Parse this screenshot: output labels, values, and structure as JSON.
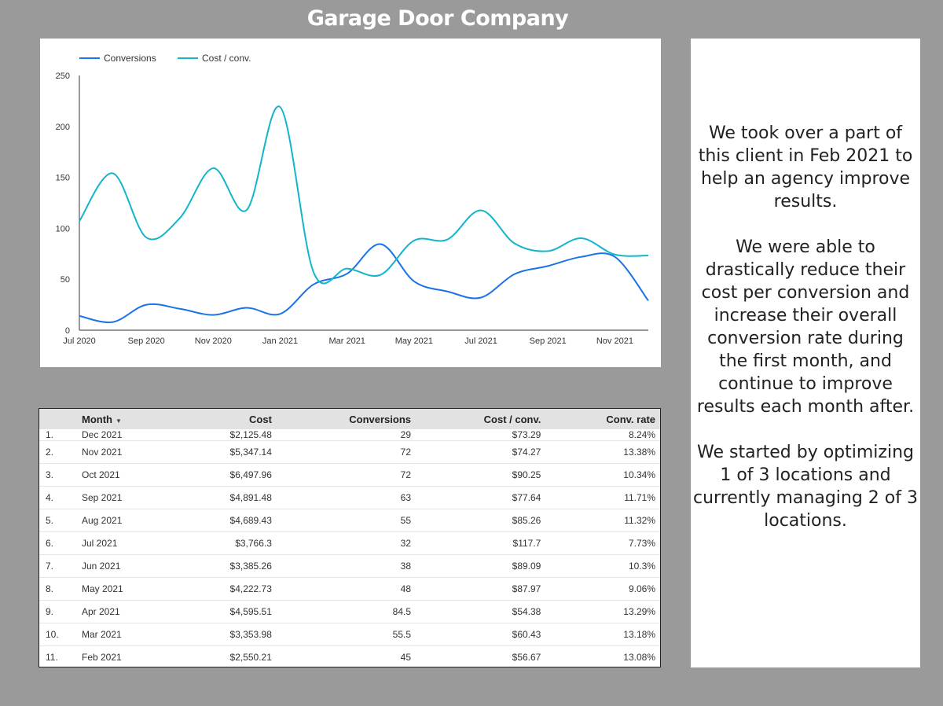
{
  "page": {
    "title": "Garage Door Company"
  },
  "chart_data": {
    "type": "line",
    "legend_position": "top-left",
    "grid": false,
    "x": [
      "Jul 2020",
      "Aug 2020",
      "Sep 2020",
      "Oct 2020",
      "Nov 2020",
      "Dec 2020",
      "Jan 2021",
      "Feb 2021",
      "Mar 2021",
      "Apr 2021",
      "May 2021",
      "Jun 2021",
      "Jul 2021",
      "Aug 2021",
      "Sep 2021",
      "Oct 2021",
      "Nov 2021",
      "Dec 2021"
    ],
    "x_tick_labels": [
      "Jul 2020",
      "Sep 2020",
      "Nov 2020",
      "Jan 2021",
      "Mar 2021",
      "May 2021",
      "Jul 2021",
      "Sep 2021",
      "Nov 2021"
    ],
    "ylim": [
      0,
      250
    ],
    "y_ticks": [
      0,
      50,
      100,
      150,
      200,
      250
    ],
    "series": [
      {
        "name": "Conversions",
        "color": "#1a73e8",
        "values": [
          14,
          8,
          25,
          21,
          15,
          22,
          16,
          45,
          55.5,
          84.5,
          48,
          38,
          32,
          55,
          63,
          72,
          72,
          29
        ]
      },
      {
        "name": "Cost / conv.",
        "color": "#12b5cb",
        "values": [
          107,
          154,
          91,
          110,
          159,
          118,
          219,
          56.67,
          60.43,
          54.38,
          87.97,
          89.09,
          117.7,
          85.26,
          77.64,
          90.25,
          74.27,
          73.29
        ]
      }
    ]
  },
  "table": {
    "headers": [
      "Month",
      "Cost",
      "Conversions",
      "Cost / conv.",
      "Conv. rate"
    ],
    "rows": [
      [
        "1.",
        "Dec 2021",
        "$2,125.48",
        "29",
        "$73.29",
        "8.24%"
      ],
      [
        "2.",
        "Nov 2021",
        "$5,347.14",
        "72",
        "$74.27",
        "13.38%"
      ],
      [
        "3.",
        "Oct 2021",
        "$6,497.96",
        "72",
        "$90.25",
        "10.34%"
      ],
      [
        "4.",
        "Sep 2021",
        "$4,891.48",
        "63",
        "$77.64",
        "11.71%"
      ],
      [
        "5.",
        "Aug 2021",
        "$4,689.43",
        "55",
        "$85.26",
        "11.32%"
      ],
      [
        "6.",
        "Jul 2021",
        "$3,766.3",
        "32",
        "$117.7",
        "7.73%"
      ],
      [
        "7.",
        "Jun 2021",
        "$3,385.26",
        "38",
        "$89.09",
        "10.3%"
      ],
      [
        "8.",
        "May 2021",
        "$4,222.73",
        "48",
        "$87.97",
        "9.06%"
      ],
      [
        "9.",
        "Apr 2021",
        "$4,595.51",
        "84.5",
        "$54.38",
        "13.29%"
      ],
      [
        "10.",
        "Mar 2021",
        "$3,353.98",
        "55.5",
        "$60.43",
        "13.18%"
      ],
      [
        "11.",
        "Feb 2021",
        "$2,550.21",
        "45",
        "$56.67",
        "13.08%"
      ]
    ]
  },
  "blurb": {
    "p1": "We took over a part of this client in Feb 2021 to help an agency improve results.",
    "p2": "We were able to drastically reduce their cost per conversion and increase their overall conversion rate during the first month, and continue to improve results each month after.",
    "p3": "We started by optimizing 1 of 3 locations and currently managing 2 of 3 locations."
  }
}
